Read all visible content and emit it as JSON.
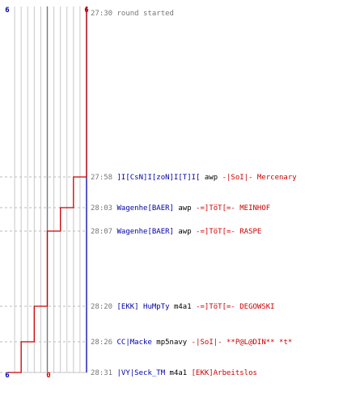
{
  "chart_data": {
    "type": "line",
    "series": [
      {
        "color": "#0000aa",
        "values": [
          6,
          6,
          6,
          6,
          6,
          6,
          6
        ]
      },
      {
        "color": "#cc0000",
        "values": [
          6,
          5,
          4,
          3,
          2,
          1,
          0
        ]
      }
    ],
    "axis": {
      "left_top": "6",
      "left_bottom": "6",
      "right_top": "6",
      "right_bottom": "0"
    },
    "ylim": [
      0,
      6
    ],
    "grid": true,
    "events": [
      {
        "time": "27:30",
        "text": "round started",
        "killer": "",
        "weapon": "",
        "victim": ""
      },
      {
        "time": "27:58",
        "text": "",
        "killer": "]I[CsN]I[zoN]I[T]I[",
        "weapon": "awp",
        "victim": "-|SoI|- Mercenary"
      },
      {
        "time": "28:03",
        "text": "",
        "killer": "Wagenhe[BAER]",
        "weapon": "awp",
        "victim": "-=]TöT[=- MEINHOF"
      },
      {
        "time": "28:07",
        "text": "",
        "killer": "Wagenhe[BAER]",
        "weapon": "awp",
        "victim": "-=]TöT[=- RASPE"
      },
      {
        "time": "28:20",
        "text": "",
        "killer": "[EKK] HuMpTy",
        "weapon": "m4a1",
        "victim": "-=]TöT[=- DEGOWSKI"
      },
      {
        "time": "28:26",
        "text": "",
        "killer": "CC|Macke",
        "weapon": "mp5navy",
        "victim": "-|SoI|- **P@L@DIN** *t*"
      },
      {
        "time": "28:31",
        "text": "",
        "killer": "|VY|Seck_TM",
        "weapon": "m4a1",
        "victim": "[EKK]Arbeitslos"
      }
    ]
  }
}
